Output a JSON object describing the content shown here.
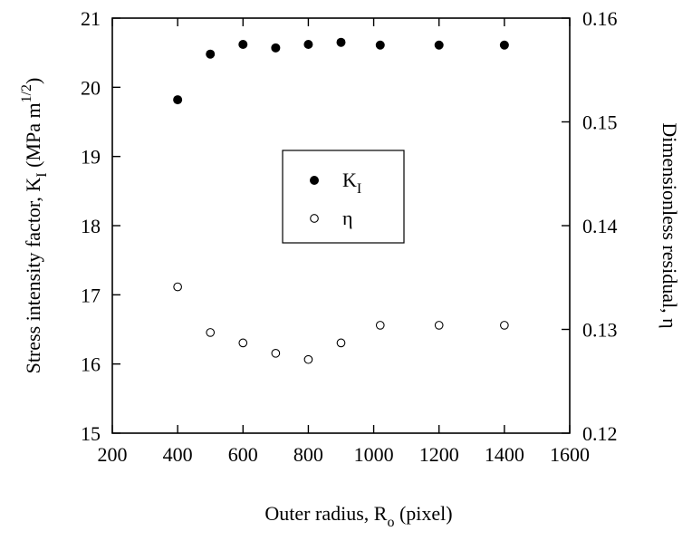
{
  "chart_data": {
    "type": "scatter",
    "xlabel": {
      "main": "Outer radius, R",
      "sub": "o",
      "suffix": " (pixel)"
    },
    "ylabel_left": {
      "main": "Stress intensity factor, K",
      "sub": "I",
      "mid": " (MPa m",
      "sup": "1/2",
      "end": ")"
    },
    "ylabel_right": "Dimensionless residual, η",
    "xlim": [
      200,
      1600
    ],
    "ylim_left": [
      15,
      21
    ],
    "ylim_right": [
      0.12,
      0.16
    ],
    "x_ticks": [
      "200",
      "400",
      "600",
      "800",
      "1000",
      "1200",
      "1400",
      "1600"
    ],
    "y_left_ticks": [
      "15",
      "16",
      "17",
      "18",
      "19",
      "20",
      "21"
    ],
    "y_right_ticks": [
      "0.12",
      "0.13",
      "0.14",
      "0.15",
      "0.16"
    ],
    "legend_placement": "center",
    "series": [
      {
        "name": "K_I",
        "legend": {
          "main": "K",
          "sub": "I"
        },
        "marker": "filled-circle",
        "axis": "left",
        "x": [
          400,
          500,
          600,
          700,
          800,
          900,
          1020,
          1200,
          1400
        ],
        "y": [
          19.82,
          20.48,
          20.62,
          20.57,
          20.62,
          20.65,
          20.61,
          20.61,
          20.61
        ]
      },
      {
        "name": "η",
        "legend": {
          "main": "η",
          "sub": ""
        },
        "marker": "open-circle",
        "axis": "right",
        "x": [
          400,
          500,
          600,
          700,
          800,
          900,
          1020,
          1200,
          1400
        ],
        "y": [
          0.1341,
          0.1297,
          0.1287,
          0.1277,
          0.1271,
          0.1287,
          0.1304,
          0.1304,
          0.1304
        ]
      }
    ]
  }
}
